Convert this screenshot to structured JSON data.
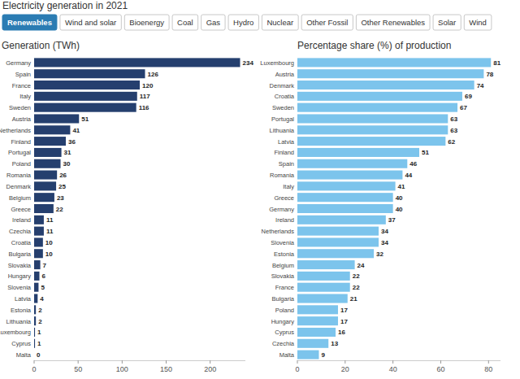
{
  "header": {
    "title": "Electricity generation in 2021",
    "tabs": [
      {
        "label": "Renewables",
        "active": true
      },
      {
        "label": "Wind and solar"
      },
      {
        "label": "Bioenergy"
      },
      {
        "label": "Coal"
      },
      {
        "label": "Gas"
      },
      {
        "label": "Hydro"
      },
      {
        "label": "Nuclear"
      },
      {
        "label": "Other Fossil"
      },
      {
        "label": "Other Renewables"
      },
      {
        "label": "Solar"
      },
      {
        "label": "Wind"
      }
    ]
  },
  "chart_data": [
    {
      "type": "bar",
      "orientation": "horizontal",
      "title": "Generation (TWh)",
      "categories": [
        "Germany",
        "Spain",
        "France",
        "Italy",
        "Sweden",
        "Austria",
        "Netherlands",
        "Finland",
        "Portugal",
        "Poland",
        "Romania",
        "Denmark",
        "Belgium",
        "Greece",
        "Ireland",
        "Czechia",
        "Croatia",
        "Bulgaria",
        "Slovakia",
        "Hungary",
        "Slovenia",
        "Latvia",
        "Estonia",
        "Lithuania",
        "Luxembourg",
        "Cyprus",
        "Malta"
      ],
      "values": [
        234,
        126,
        120,
        117,
        116,
        51,
        41,
        36,
        31,
        30,
        26,
        25,
        23,
        22,
        11,
        11,
        10,
        10,
        7,
        6,
        5,
        4,
        2,
        2,
        1,
        1,
        0
      ],
      "color": "#253f6e",
      "xlim": [
        0,
        240
      ],
      "xticks": [
        0,
        50,
        100,
        150,
        200
      ],
      "grid": false,
      "data_labels": true
    },
    {
      "type": "bar",
      "orientation": "horizontal",
      "title": "Percentage share (%) of production",
      "categories": [
        "Luxembourg",
        "Austria",
        "Denmark",
        "Croatia",
        "Sweden",
        "Portugal",
        "Lithuania",
        "Latvia",
        "Finland",
        "Spain",
        "Romania",
        "Italy",
        "Greece",
        "Germany",
        "Ireland",
        "Netherlands",
        "Slovenia",
        "Estonia",
        "Belgium",
        "Slovakia",
        "France",
        "Bulgaria",
        "Poland",
        "Hungary",
        "Cyprus",
        "Czechia",
        "Malta"
      ],
      "values": [
        81,
        78,
        74,
        69,
        67,
        63,
        63,
        62,
        51,
        46,
        44,
        41,
        40,
        40,
        37,
        34,
        34,
        32,
        24,
        22,
        22,
        21,
        17,
        17,
        16,
        13,
        9
      ],
      "color": "#7cc4ec",
      "xlim": [
        0,
        85
      ],
      "xticks": [
        0,
        20,
        40,
        60,
        80
      ],
      "grid": false,
      "data_labels": true
    }
  ]
}
